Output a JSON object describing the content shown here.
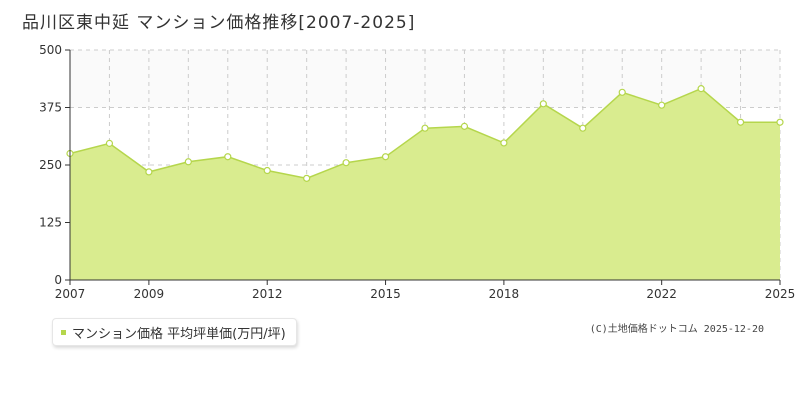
{
  "chart_data": {
    "type": "area",
    "title": "品川区東中延 マンション価格推移[2007-2025]",
    "series": [
      {
        "name": "マンション価格 平均坪単価(万円/坪)",
        "x": [
          2007,
          2008,
          2009,
          2010,
          2011,
          2012,
          2013,
          2014,
          2015,
          2016,
          2017,
          2018,
          2019,
          2020,
          2021,
          2022,
          2023,
          2024,
          2025
        ],
        "values": [
          275,
          297,
          235,
          257,
          268,
          238,
          221,
          255,
          268,
          330,
          334,
          298,
          383,
          330,
          408,
          380,
          416,
          343,
          343
        ]
      }
    ],
    "x_ticks": [
      "2007",
      "2009",
      "2012",
      "2015",
      "2018",
      "2022",
      "2025"
    ],
    "y_ticks": [
      "0",
      "125",
      "250",
      "375",
      "500"
    ],
    "ylim": [
      0,
      500
    ],
    "xlim": [
      2007,
      2025
    ],
    "grid": true,
    "legend_position": "bottom-left",
    "colors": {
      "fill": "#d9ec8f",
      "line": "#b5d64c",
      "band": "#fafafa",
      "grid": "#cccccc"
    }
  },
  "copyright": "(C)土地価格ドットコム 2025-12-20"
}
